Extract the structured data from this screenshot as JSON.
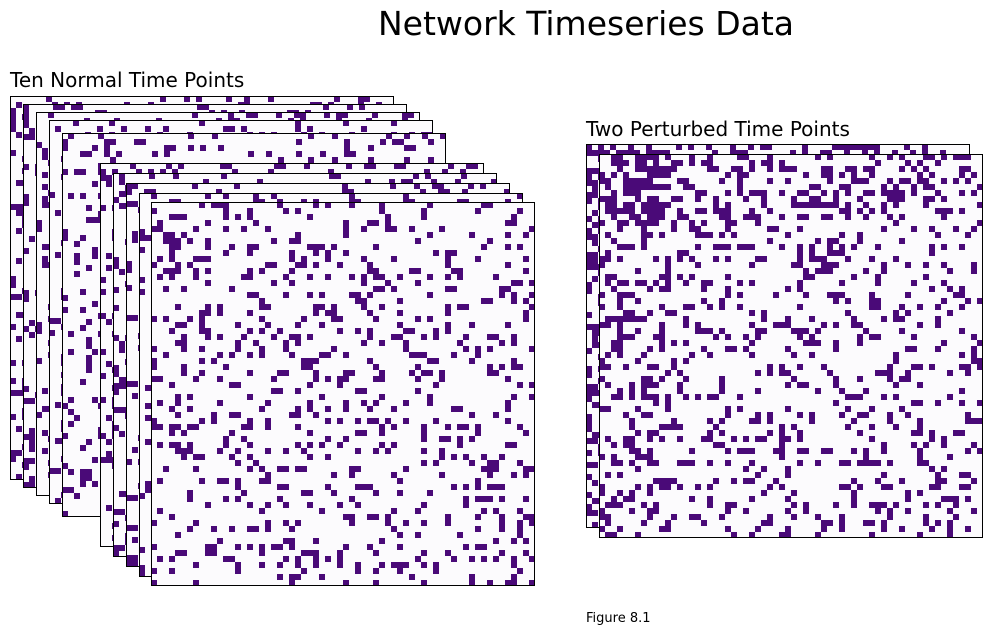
{
  "figure": {
    "title": "Network Timeseries Data",
    "caption": "Figure 8.1"
  },
  "chart_data": [
    {
      "type": "heatmap",
      "title": "Ten Normal Time Points",
      "matrix_count": 10,
      "matrix_size": [
        64,
        64
      ],
      "value_domain": [
        0,
        1
      ],
      "colors": {
        "0": "#fcfbfd",
        "1": "#4a0a78"
      },
      "edge_density": 0.18,
      "seed": 12345,
      "xlabel": "",
      "ylabel": ""
    },
    {
      "type": "heatmap",
      "title": "Two Perturbed Time Points",
      "matrix_count": 2,
      "matrix_size": [
        64,
        64
      ],
      "value_domain": [
        0,
        1
      ],
      "colors": {
        "0": "#fcfbfd",
        "1": "#4a0a78"
      },
      "edge_density": 0.2,
      "dense_block_density": 0.55,
      "seed": 98765,
      "xlabel": "",
      "ylabel": ""
    }
  ]
}
